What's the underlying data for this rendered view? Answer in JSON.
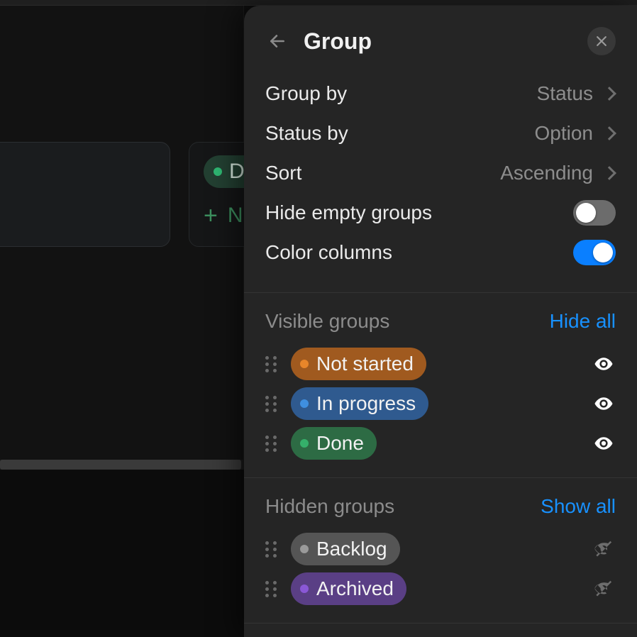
{
  "background": {
    "card_pill_label": "Do",
    "card_pill_bg": "rgba(48,101,73,0.55)",
    "card_pill_dot": "#2fb873",
    "new_label": "N",
    "new_color": "#3c8f5e"
  },
  "panel": {
    "title": "Group",
    "options": {
      "group_by": {
        "label": "Group by",
        "value": "Status"
      },
      "status_by": {
        "label": "Status by",
        "value": "Option"
      },
      "sort": {
        "label": "Sort",
        "value": "Ascending"
      },
      "hide_empty": {
        "label": "Hide empty groups",
        "on": false
      },
      "color_columns": {
        "label": "Color columns",
        "on": true
      }
    },
    "toggle_colors": {
      "on": "#0a7fff",
      "off": "#6c6c6c"
    },
    "link_color": "#1891ff",
    "visible": {
      "title": "Visible groups",
      "action": "Hide all",
      "items": [
        {
          "label": "Not started",
          "bg": "#a05a1f",
          "dot": "#e8862a"
        },
        {
          "label": "In progress",
          "bg": "#2f5a8f",
          "dot": "#3f8fe0"
        },
        {
          "label": "Done",
          "bg": "#2d6b44",
          "dot": "#35b06a"
        }
      ]
    },
    "hidden": {
      "title": "Hidden groups",
      "action": "Show all",
      "items": [
        {
          "label": "Backlog",
          "bg": "#555555",
          "dot": "#9a9a9a"
        },
        {
          "label": "Archived",
          "bg": "#5a3f85",
          "dot": "#8a58d6"
        }
      ]
    }
  }
}
